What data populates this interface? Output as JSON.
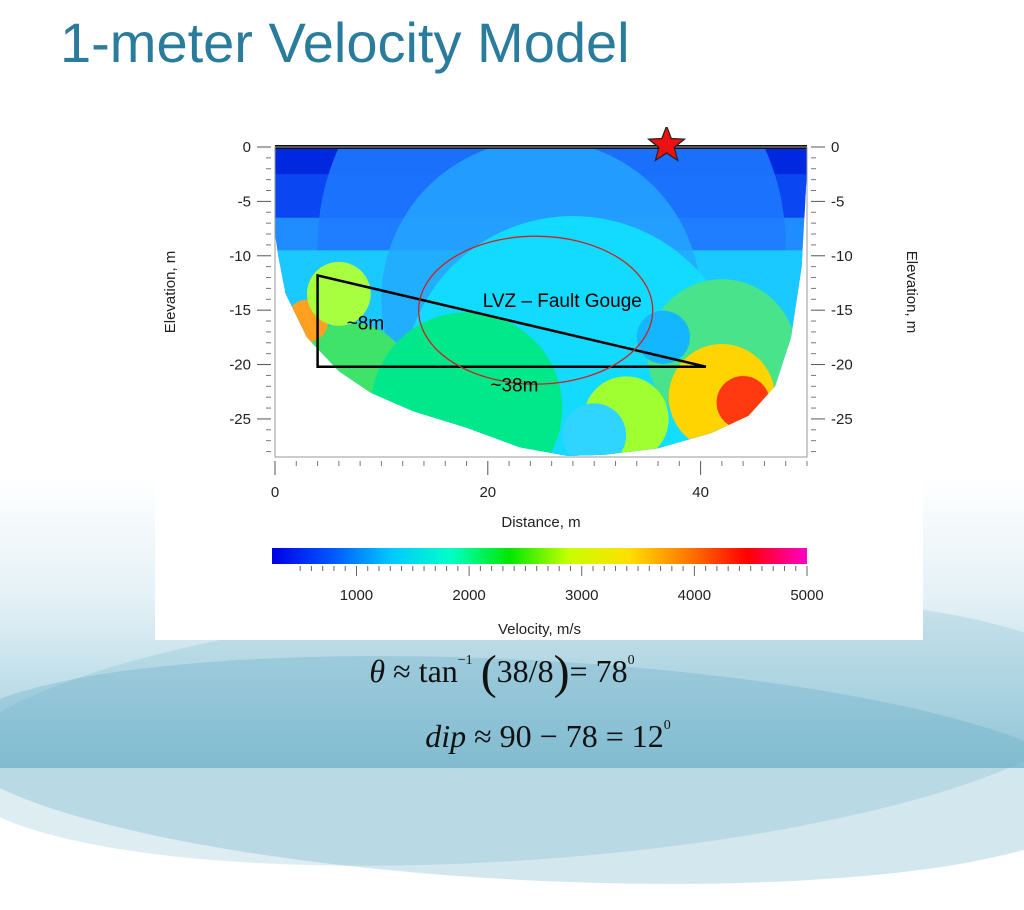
{
  "slide": {
    "title": "1-meter Velocity Model"
  },
  "chart_data": {
    "type": "heatmap",
    "xlabel": "Distance, m",
    "ylabel_left": "Elevation, m",
    "ylabel_right": "Elevation, m",
    "x_ticks": [
      "0",
      "20",
      "40"
    ],
    "x_tick_values": [
      0,
      20,
      40
    ],
    "xlim": [
      0,
      50
    ],
    "y_ticks": [
      "0",
      "-5",
      "-10",
      "-15",
      "-20",
      "-25"
    ],
    "y_tick_values": [
      0,
      -5,
      -10,
      -15,
      -20,
      -25
    ],
    "ylim": [
      -28.5,
      0
    ],
    "colorbar": {
      "label": "Velocity, m/s",
      "ticks": [
        "1000",
        "2000",
        "3000",
        "4000",
        "5000"
      ],
      "tick_values": [
        1000,
        2000,
        3000,
        4000,
        5000
      ],
      "range": [
        250,
        5000
      ],
      "colors": [
        "#0000e6",
        "#0055ff",
        "#00c8ff",
        "#00ffc8",
        "#00e800",
        "#c8ff00",
        "#ffe000",
        "#ff7800",
        "#ff0000",
        "#ff00c8"
      ]
    },
    "annotations": [
      {
        "text": "LVZ – Fault Gouge",
        "x": 27,
        "y": -14.7
      },
      {
        "text": "~8m",
        "x": 8.5,
        "y": -16.8
      },
      {
        "text": "~38m",
        "x": 22.5,
        "y": -22.5
      }
    ],
    "triangle": [
      [
        4,
        -11.8
      ],
      [
        4,
        -20.2
      ],
      [
        40.5,
        -20.2
      ]
    ],
    "ellipse": {
      "cx": 24.5,
      "cy": -15,
      "rx": 11,
      "ry": 6.8
    },
    "source_marker": {
      "x": 36.8,
      "y": 0,
      "shape": "star",
      "color": "#ee1111"
    },
    "grid": false
  },
  "equations": {
    "eq1": {
      "lhs": "θ",
      "approx": "≈",
      "func": "tan",
      "exp": "−1",
      "lparen": "(",
      "arg": "38/8",
      "rparen": ")",
      "rhs": "= 78",
      "deg": "0"
    },
    "eq2": {
      "lhs": "dip",
      "approx": "≈",
      "rhs": "90 − 78 = 12",
      "deg": "0"
    }
  }
}
